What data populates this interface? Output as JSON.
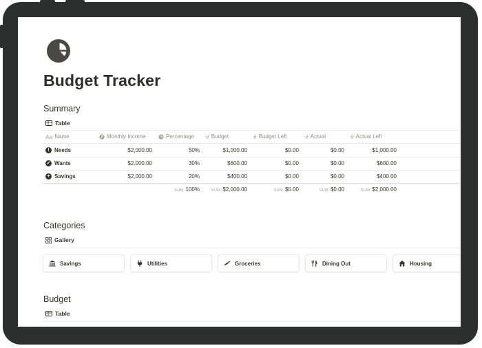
{
  "page": {
    "title": "Budget Tracker",
    "icon": "pie-chart-icon"
  },
  "summary": {
    "title": "Summary",
    "view_label": "Table",
    "columns": [
      {
        "label": "Name",
        "icon": "Aa"
      },
      {
        "label": "Monthly Income",
        "icon": "formula-icon"
      },
      {
        "label": "Percentage",
        "icon": "rollup-icon"
      },
      {
        "label": "Budget",
        "icon": "#"
      },
      {
        "label": "Budget Left",
        "icon": "#"
      },
      {
        "label": "Actual",
        "icon": "#"
      },
      {
        "label": "Actual Left",
        "icon": "#"
      }
    ],
    "rows": [
      {
        "name": "Needs",
        "icon": "exclamation-circle-icon",
        "monthly_income": "$2,000.00",
        "percentage": "50%",
        "budget": "$1,000.00",
        "budget_left": "$0.00",
        "actual": "$0.00",
        "actual_left": "$1,000.00"
      },
      {
        "name": "Wants",
        "icon": "check-circle-icon",
        "monthly_income": "$2,000.00",
        "percentage": "30%",
        "budget": "$600.00",
        "budget_left": "$0.00",
        "actual": "$0.00",
        "actual_left": "$600.00"
      },
      {
        "name": "Savings",
        "icon": "plus-circle-icon",
        "monthly_income": "$2,000.00",
        "percentage": "20%",
        "budget": "$400.00",
        "budget_left": "$0.00",
        "actual": "$0.00",
        "actual_left": "$400.00"
      }
    ],
    "sum_label": "SUM",
    "sums": {
      "percentage": "100%",
      "budget": "$2,000.00",
      "budget_left": "$0.00",
      "actual": "$0.00",
      "actual_left": "$2,000.00"
    }
  },
  "categories": {
    "title": "Categories",
    "view_label": "Gallery",
    "cards": [
      {
        "label": "Savings",
        "icon": "bank-icon"
      },
      {
        "label": "Utilities",
        "icon": "plug-icon"
      },
      {
        "label": "Groceries",
        "icon": "carrot-icon"
      },
      {
        "label": "Dining Out",
        "icon": "fork-knife-icon"
      },
      {
        "label": "Housing",
        "icon": "house-icon"
      }
    ]
  },
  "budget": {
    "title": "Budget",
    "view_label": "Table"
  }
}
